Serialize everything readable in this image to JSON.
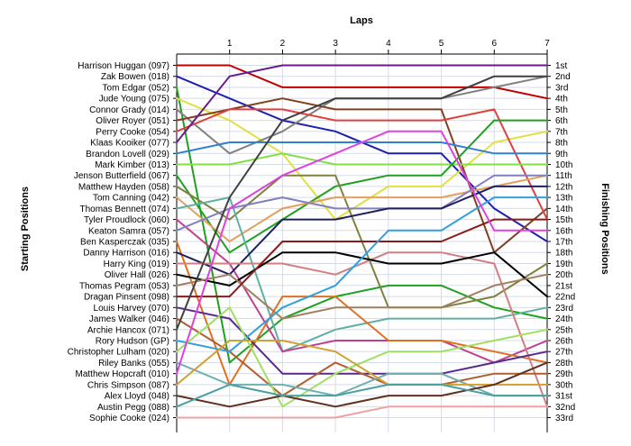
{
  "chart_data": {
    "type": "line",
    "xlabel": "Laps",
    "ylabel_left": "Starting Positions",
    "ylabel_right": "Finishing Positions",
    "x": [
      0,
      1,
      2,
      3,
      4,
      5,
      6,
      7
    ],
    "x_tick_labels": [
      "1",
      "2",
      "3",
      "4",
      "5",
      "6",
      "7"
    ],
    "ylim": [
      1,
      33
    ],
    "y_inverted": true,
    "grid": true,
    "starting_labels": [
      "Harrison Huggan (097)",
      "Zak Bowen (018)",
      "Tom Edgar (052)",
      "Jude Young (075)",
      "Connor Grady (014)",
      "Oliver Royer (051)",
      "Perry Cooke (054)",
      "Klaas Kooiker (077)",
      "Brandon Lovell (029)",
      "Mark Kimber (013)",
      "Jenson Butterfield (067)",
      "Matthew Hayden (058)",
      "Tom Canning (042)",
      "Thomas Bennett (074)",
      "Tyler Proudlock (060)",
      "Keaton Samra (057)",
      "Ben Kasperczak (035)",
      "Danny Harrison (016)",
      "Harry King (019)",
      "Oliver Hall (026)",
      "Thomas Pegram (053)",
      "Dragan Pinsent (098)",
      "Louis Harvey (070)",
      "James Walker (046)",
      "Archie Hancox (071)",
      "Rory Hudson (GP)",
      "Christopher Lulham (020)",
      "Riley Banks (055)",
      "Matthew Hopcraft (010)",
      "Chris Simpson (087)",
      "Alex Lloyd (048)",
      "Austin Pegg (088)",
      "Sophie Cooke (024)"
    ],
    "finishing_labels": [
      "1st",
      "2nd",
      "3rd",
      "4th",
      "5th",
      "6th",
      "7th",
      "8th",
      "9th",
      "10th",
      "11th",
      "12th",
      "13th",
      "14th",
      "15th",
      "16th",
      "17th",
      "18th",
      "19th",
      "20th",
      "21st",
      "22nd",
      "23rd",
      "24th",
      "25th",
      "26th",
      "27th",
      "28th",
      "29th",
      "30th",
      "31st",
      "32nd",
      "33rd"
    ],
    "series": [
      {
        "color": "#c00000",
        "values": [
          1,
          1,
          3,
          3,
          3,
          3,
          3,
          4
        ]
      },
      {
        "color": "#2020b0",
        "values": [
          2,
          4,
          6,
          7,
          9,
          9,
          14,
          17
        ]
      },
      {
        "color": "#20a020",
        "values": [
          3,
          28,
          24,
          22,
          21,
          21,
          23,
          24
        ]
      },
      {
        "color": "#e0e040",
        "values": [
          4,
          6,
          9,
          15,
          12,
          12,
          8,
          7
        ]
      },
      {
        "color": "#808080",
        "values": [
          5,
          9,
          7,
          4,
          4,
          4,
          3,
          2
        ]
      },
      {
        "color": "#804020",
        "values": [
          6,
          5,
          4,
          5,
          5,
          5,
          18,
          14
        ]
      },
      {
        "color": "#e04040",
        "values": [
          7,
          5,
          5,
          6,
          6,
          6,
          5,
          15
        ]
      },
      {
        "color": "#6a1a8a",
        "values": [
          8,
          2,
          1,
          1,
          1,
          1,
          1,
          1
        ]
      },
      {
        "color": "#3080d0",
        "values": [
          9,
          8,
          8,
          8,
          8,
          8,
          9,
          9
        ]
      },
      {
        "color": "#80e040",
        "values": [
          10,
          10,
          9,
          10,
          10,
          10,
          10,
          10
        ]
      },
      {
        "color": "#20a020",
        "values": [
          11,
          18,
          15,
          12,
          11,
          11,
          6,
          6
        ]
      },
      {
        "color": "#808040",
        "values": [
          12,
          15,
          11,
          11,
          23,
          23,
          22,
          19
        ]
      },
      {
        "color": "#e0a060",
        "values": [
          13,
          17,
          14,
          13,
          13,
          13,
          12,
          11
        ]
      },
      {
        "color": "#60b0a0",
        "values": [
          14,
          13,
          27,
          25,
          24,
          24,
          24,
          23
        ]
      },
      {
        "color": "#c04090",
        "values": [
          15,
          19,
          27,
          26,
          26,
          26,
          28,
          26
        ]
      },
      {
        "color": "#8080c0",
        "values": [
          16,
          14,
          13,
          14,
          14,
          14,
          11,
          11
        ]
      },
      {
        "color": "#e07020",
        "values": [
          17,
          30,
          22,
          22,
          26,
          26,
          27,
          28
        ]
      },
      {
        "color": "#202060",
        "values": [
          18,
          20,
          15,
          15,
          14,
          14,
          12,
          12
        ]
      },
      {
        "color": "#d08080",
        "values": [
          19,
          19,
          19,
          20,
          18,
          18,
          19,
          32
        ]
      },
      {
        "color": "#000000",
        "values": [
          20,
          21,
          18,
          18,
          19,
          19,
          18,
          22
        ]
      },
      {
        "color": "#a08060",
        "values": [
          21,
          20,
          24,
          23,
          23,
          23,
          21,
          20
        ]
      },
      {
        "color": "#8b1a1a",
        "values": [
          22,
          22,
          17,
          17,
          17,
          17,
          15,
          15
        ]
      },
      {
        "color": "#5a2a8a",
        "values": [
          23,
          24,
          29,
          29,
          29,
          29,
          28,
          27
        ]
      },
      {
        "color": "#b06030",
        "values": [
          24,
          27,
          31,
          28,
          30,
          30,
          29,
          29
        ]
      },
      {
        "color": "#404040",
        "values": [
          25,
          13,
          6,
          4,
          4,
          4,
          2,
          2
        ]
      },
      {
        "color": "#30a0e0",
        "values": [
          26,
          27,
          23,
          21,
          16,
          16,
          13,
          13
        ]
      },
      {
        "color": "#a0e060",
        "values": [
          27,
          23,
          32,
          29,
          27,
          27,
          26,
          25
        ]
      },
      {
        "color": "#70b0b0",
        "values": [
          28,
          30,
          30,
          31,
          29,
          29,
          31,
          31
        ]
      },
      {
        "color": "#e040e0",
        "values": [
          29,
          14,
          11,
          9,
          7,
          7,
          16,
          16
        ]
      },
      {
        "color": "#d0a030",
        "values": [
          30,
          26,
          26,
          27,
          30,
          30,
          30,
          30
        ]
      },
      {
        "color": "#603020",
        "values": [
          31,
          32,
          31,
          32,
          31,
          31,
          30,
          28
        ]
      },
      {
        "color": "#4aa0a0",
        "values": [
          32,
          30,
          31,
          31,
          30,
          30,
          31,
          31
        ]
      },
      {
        "color": "#f0a0a0",
        "values": [
          33,
          33,
          33,
          33,
          32,
          32,
          32,
          32
        ]
      }
    ]
  }
}
